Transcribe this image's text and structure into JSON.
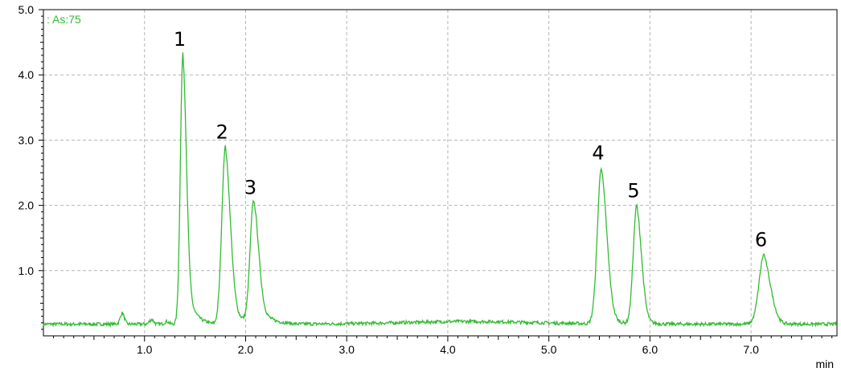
{
  "chart_data": {
    "type": "line",
    "title": "",
    "xlabel": "min",
    "ylabel": "",
    "xlim": [
      0.0,
      7.85
    ],
    "ylim": [
      0.0,
      5.0
    ],
    "grid": true,
    "grid_style": "dashed",
    "x_ticks": [
      1.0,
      2.0,
      3.0,
      4.0,
      5.0,
      6.0,
      7.0
    ],
    "x_tick_labels": [
      "1.0",
      "2.0",
      "3.0",
      "4.0",
      "5.0",
      "6.0",
      "7.0"
    ],
    "y_ticks": [
      1.0,
      2.0,
      3.0,
      4.0,
      5.0
    ],
    "y_tick_labels": [
      "1.0",
      "2.0",
      "3.0",
      "4.0",
      "5.0"
    ],
    "series": [
      {
        "name": "As 75",
        "color": "#33bb33",
        "baseline": 0.18,
        "peaks": [
          {
            "label": "1",
            "rt": 1.38,
            "height": 4.32,
            "width": 0.025,
            "tail": 0.07
          },
          {
            "label": "2",
            "rt": 1.8,
            "height": 2.9,
            "width": 0.035,
            "tail": 0.08
          },
          {
            "label": "3",
            "rt": 2.08,
            "height": 2.05,
            "width": 0.035,
            "tail": 0.1
          },
          {
            "label": "4",
            "rt": 5.52,
            "height": 2.58,
            "width": 0.04,
            "tail": 0.06
          },
          {
            "label": "5",
            "rt": 5.87,
            "height": 2.0,
            "width": 0.035,
            "tail": 0.05
          },
          {
            "label": "6",
            "rt": 7.13,
            "height": 1.25,
            "width": 0.05,
            "tail": 0.04
          }
        ],
        "minor_features": [
          {
            "rt": 0.78,
            "height": 0.35
          },
          {
            "rt": 1.07,
            "height": 0.25
          },
          {
            "rt": 1.22,
            "height": 0.22
          }
        ]
      }
    ],
    "legend": "top-left"
  },
  "labels": {
    "series_tag": ": As:75",
    "x_unit": "min"
  }
}
